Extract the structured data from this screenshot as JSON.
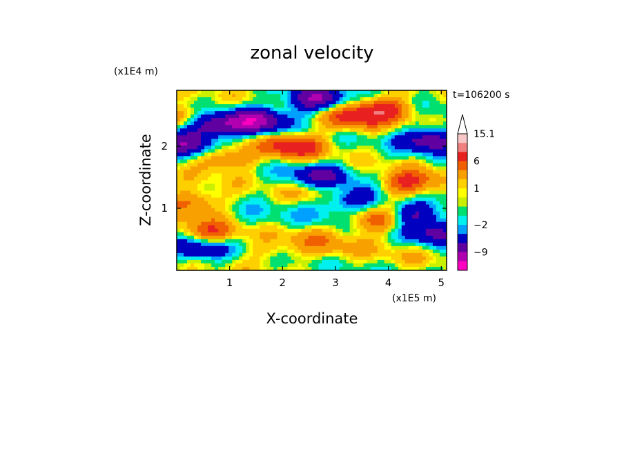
{
  "chart_data": {
    "type": "heatmap",
    "title": "zonal velocity",
    "xlabel": "X-coordinate",
    "ylabel": "Z-coordinate",
    "x_unit": "(x1E5 m)",
    "y_unit": "(x1E4 m)",
    "time_label": "t=106200 s",
    "xlim": [
      0,
      5.1
    ],
    "ylim": [
      0,
      2.9
    ],
    "x_ticks": [
      1,
      2,
      3,
      4,
      5
    ],
    "x_tick_labels": [
      "1",
      "2",
      "3",
      "4",
      "5"
    ],
    "y_ticks": [
      1,
      2
    ],
    "y_tick_labels": [
      "1",
      "2"
    ],
    "colorbar": {
      "labels": [
        "15.1",
        "6",
        "1",
        "−2",
        "−9"
      ],
      "label_levels": [
        15.1,
        6,
        1,
        -2,
        -9
      ],
      "levels": [
        15.1,
        12,
        9,
        6,
        4,
        2,
        1,
        0.5,
        0,
        -1,
        -2,
        -3,
        -6,
        -9,
        -12,
        -15
      ],
      "colors": [
        "#f8c8c8",
        "#f08080",
        "#e82020",
        "#f06000",
        "#f8a000",
        "#ffd000",
        "#ffff00",
        "#c8f000",
        "#00e070",
        "#00f0f0",
        "#00a0ff",
        "#0000c0",
        "#6000a0",
        "#b000b0",
        "#ff00c0"
      ],
      "extend": "max"
    },
    "field": {
      "description_of_features": [
        {
          "x": 0.6,
          "z": 2.35,
          "amp": -9
        },
        {
          "x": 1.5,
          "z": 2.4,
          "amp": -10
        },
        {
          "x": 2.6,
          "z": 2.75,
          "amp": -9
        },
        {
          "x": 4.8,
          "z": 2.1,
          "amp": -8
        },
        {
          "x": 0.2,
          "z": 2.05,
          "amp": -8
        },
        {
          "x": 2.7,
          "z": 1.5,
          "amp": -7
        },
        {
          "x": 3.3,
          "z": 1.15,
          "amp": -6
        },
        {
          "x": 4.5,
          "z": 0.9,
          "amp": -7
        },
        {
          "x": 0.4,
          "z": 0.35,
          "amp": -6
        },
        {
          "x": 4.9,
          "z": 0.6,
          "amp": -6
        },
        {
          "x": 2.2,
          "z": 2.0,
          "amp": 8
        },
        {
          "x": 3.3,
          "z": 2.45,
          "amp": 6
        },
        {
          "x": 3.9,
          "z": 2.6,
          "amp": 7
        },
        {
          "x": 0.2,
          "z": 2.45,
          "amp": 6
        },
        {
          "x": 0.9,
          "z": 1.8,
          "amp": 5
        },
        {
          "x": 4.4,
          "z": 1.4,
          "amp": 7
        },
        {
          "x": 3.8,
          "z": 0.8,
          "amp": 6
        },
        {
          "x": 0.6,
          "z": 0.6,
          "amp": 6
        },
        {
          "x": 0.3,
          "z": 1.1,
          "amp": 5
        },
        {
          "x": 2.7,
          "z": 1.3,
          "amp": 3
        },
        {
          "x": 2.5,
          "z": 0.5,
          "amp": 2
        },
        {
          "x": 3.0,
          "z": 0.35,
          "amp": 2
        },
        {
          "x": 1.8,
          "z": 0.3,
          "amp": 2
        },
        {
          "x": 2.6,
          "z": 0.9,
          "amp": -1
        },
        {
          "x": 1.5,
          "z": 0.8,
          "amp": -1
        },
        {
          "x": 4.2,
          "z": 0.2,
          "amp": 1
        }
      ]
    }
  }
}
